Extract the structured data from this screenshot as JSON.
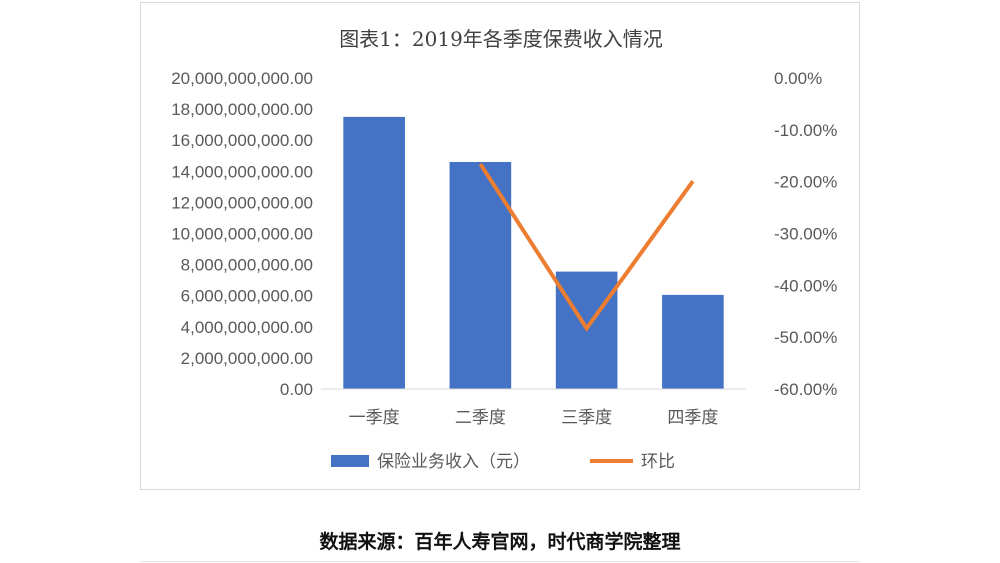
{
  "chart_data": {
    "type": "bar",
    "title": "图表1：2019年各季度保费收入情况",
    "categories": [
      "一季度",
      "二季度",
      "三季度",
      "四季度"
    ],
    "series": [
      {
        "name": "保险业务收入（元）",
        "type": "bar",
        "axis": "left",
        "color": "#4472c4",
        "values": [
          17500000000,
          14600000000,
          7550000000,
          6050000000
        ]
      },
      {
        "name": "环比",
        "type": "line",
        "axis": "right",
        "color": "#ed7d31",
        "values": [
          null,
          -16.6,
          -48.3,
          -19.9
        ]
      }
    ],
    "y_left": {
      "min": 0,
      "max": 20000000000,
      "ticks": [
        "20,000,000,000.00",
        "18,000,000,000.00",
        "16,000,000,000.00",
        "14,000,000,000.00",
        "12,000,000,000.00",
        "10,000,000,000.00",
        "8,000,000,000.00",
        "6,000,000,000.00",
        "4,000,000,000.00",
        "2,000,000,000.00",
        "0.00"
      ]
    },
    "y_right": {
      "min": -60,
      "max": 0,
      "ticks": [
        "0.00%",
        "-10.00%",
        "-20.00%",
        "-30.00%",
        "-40.00%",
        "-50.00%",
        "-60.00%"
      ]
    },
    "grid": false,
    "legend_position": "bottom"
  },
  "source_note": "数据来源：百年人寿官网，时代商学院整理"
}
